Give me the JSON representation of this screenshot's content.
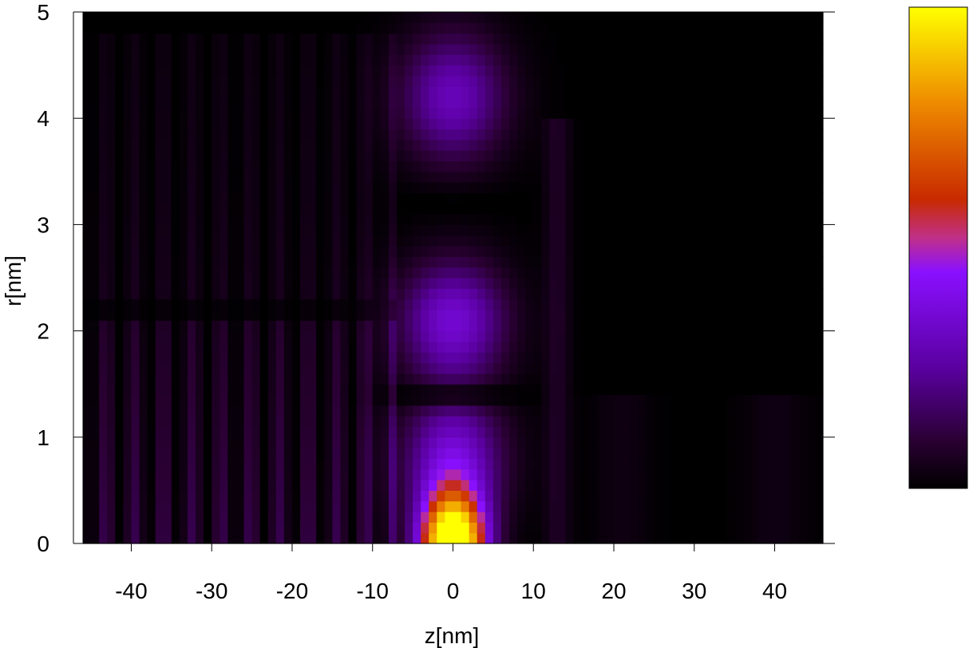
{
  "chart_data": {
    "type": "heatmap",
    "xlabel": "z[nm]",
    "ylabel": "r[nm]",
    "xlim": [
      -46,
      46
    ],
    "ylim": [
      0,
      5
    ],
    "x_ticks": [
      -40,
      -30,
      -20,
      -10,
      0,
      10,
      20,
      30,
      40
    ],
    "x_tick_labels": [
      "-40",
      "-30",
      "-20",
      "-10",
      "0",
      "10",
      "20",
      "30",
      "40"
    ],
    "y_ticks": [
      0,
      1,
      2,
      3,
      4,
      5
    ],
    "y_tick_labels": [
      "0",
      "1",
      "2",
      "3",
      "4",
      "5"
    ],
    "colormap": [
      "#000000",
      "#2a0033",
      "#5a00a0",
      "#8a10ff",
      "#c0308a",
      "#c82a00",
      "#ee8a00",
      "#ffff00"
    ],
    "colorbar": {
      "show": true,
      "tick_labels": []
    },
    "regions": [
      {
        "description": "peak",
        "z_center": 0,
        "r_center": 0.1,
        "relative_intensity": 1.0
      },
      {
        "description": "second lobe",
        "z_center": 0,
        "r_center": 2.1,
        "relative_intensity": 0.55
      },
      {
        "description": "third lobe",
        "z_center": 0,
        "r_center": 4.2,
        "relative_intensity": 0.42
      }
    ],
    "grid": false
  }
}
